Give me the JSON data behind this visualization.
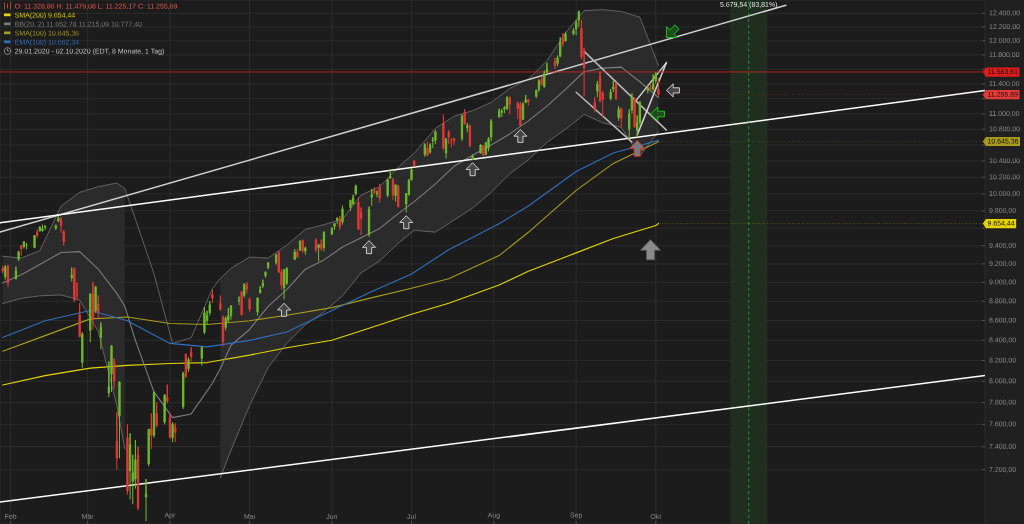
{
  "chart_data": {
    "type": "candlestick",
    "log": true,
    "grid": true,
    "legend": "top left",
    "xlim": [
      "2020-01-28",
      "2021-02-02"
    ],
    "xticks": [
      {
        "value": "2020-02-01",
        "label": "Feb"
      },
      {
        "value": "2020-03-01",
        "label": "Mär"
      },
      {
        "value": "2020-04-01",
        "label": "Apr"
      },
      {
        "value": "2020-05-01",
        "label": "Mai"
      },
      {
        "value": "2020-06-01",
        "label": "Jun"
      },
      {
        "value": "2020-07-01",
        "label": "Jul"
      },
      {
        "value": "2020-08-01",
        "label": "Aug"
      },
      {
        "value": "2020-09-01",
        "label": "Sep"
      },
      {
        "value": "2020-10-01",
        "label": "Okt"
      }
    ],
    "ylim": [
      6750,
      12600
    ],
    "yticks": [
      {
        "value": 7200,
        "label": "7.200,00"
      },
      {
        "value": 7400,
        "label": "7.400,00"
      },
      {
        "value": 7600,
        "label": "7.600,00"
      },
      {
        "value": 7800,
        "label": "7.800,00"
      },
      {
        "value": 8000,
        "label": "8.000,00"
      },
      {
        "value": 8200,
        "label": "8.200,00"
      },
      {
        "value": 8400,
        "label": "8.400,00"
      },
      {
        "value": 8600,
        "label": "8.600,00"
      },
      {
        "value": 8800,
        "label": "8.800,00"
      },
      {
        "value": 9000,
        "label": "9.000,00"
      },
      {
        "value": 9200,
        "label": "9.200,00"
      },
      {
        "value": 9400,
        "label": "9.400,00"
      },
      {
        "value": 9600,
        "label": null
      },
      {
        "value": 9800,
        "label": "9.800,00"
      },
      {
        "value": 10000,
        "label": "10.000,00"
      },
      {
        "value": 10200,
        "label": "10.200,00"
      },
      {
        "value": 10400,
        "label": "10.400,00"
      },
      {
        "value": 10600,
        "label": null
      },
      {
        "value": 10800,
        "label": "10.800,00"
      },
      {
        "value": 11000,
        "label": "11.000,00"
      },
      {
        "value": 11200,
        "label": null
      },
      {
        "value": 11400,
        "label": "11.400,00"
      },
      {
        "value": 11600,
        "label": null
      },
      {
        "value": 11800,
        "label": "11.800,00"
      },
      {
        "value": 12000,
        "label": "12.000,00"
      },
      {
        "value": 12200,
        "label": "12.200,00"
      },
      {
        "value": 12400,
        "label": "12.400,00"
      }
    ],
    "x": [
      "2020-01-29",
      "2020-01-30",
      "2020-01-31",
      "2020-02-03",
      "2020-02-04",
      "2020-02-05",
      "2020-02-06",
      "2020-02-07",
      "2020-02-10",
      "2020-02-11",
      "2020-02-12",
      "2020-02-13",
      "2020-02-14",
      "2020-02-18",
      "2020-02-19",
      "2020-02-20",
      "2020-02-21",
      "2020-02-24",
      "2020-02-25",
      "2020-02-26",
      "2020-02-27",
      "2020-02-28",
      "2020-03-02",
      "2020-03-03",
      "2020-03-04",
      "2020-03-05",
      "2020-03-06",
      "2020-03-09",
      "2020-03-10",
      "2020-03-11",
      "2020-03-12",
      "2020-03-13",
      "2020-03-16",
      "2020-03-17",
      "2020-03-18",
      "2020-03-19",
      "2020-03-20",
      "2020-03-23",
      "2020-03-24",
      "2020-03-25",
      "2020-03-26",
      "2020-03-27",
      "2020-03-30",
      "2020-03-31",
      "2020-04-01",
      "2020-04-02",
      "2020-04-03",
      "2020-04-06",
      "2020-04-07",
      "2020-04-08",
      "2020-04-09",
      "2020-04-13",
      "2020-04-14",
      "2020-04-15",
      "2020-04-16",
      "2020-04-17",
      "2020-04-20",
      "2020-04-21",
      "2020-04-22",
      "2020-04-23",
      "2020-04-24",
      "2020-04-27",
      "2020-04-28",
      "2020-04-29",
      "2020-04-30",
      "2020-05-01",
      "2020-05-04",
      "2020-05-05",
      "2020-05-06",
      "2020-05-07",
      "2020-05-08",
      "2020-05-11",
      "2020-05-12",
      "2020-05-13",
      "2020-05-14",
      "2020-05-15",
      "2020-05-18",
      "2020-05-19",
      "2020-05-20",
      "2020-05-21",
      "2020-05-22",
      "2020-05-26",
      "2020-05-27",
      "2020-05-28",
      "2020-05-29",
      "2020-06-01",
      "2020-06-02",
      "2020-06-03",
      "2020-06-04",
      "2020-06-05",
      "2020-06-08",
      "2020-06-09",
      "2020-06-10",
      "2020-06-11",
      "2020-06-12",
      "2020-06-15",
      "2020-06-16",
      "2020-06-17",
      "2020-06-18",
      "2020-06-19",
      "2020-06-22",
      "2020-06-23",
      "2020-06-24",
      "2020-06-25",
      "2020-06-26",
      "2020-06-29",
      "2020-06-30",
      "2020-07-01",
      "2020-07-02",
      "2020-07-06",
      "2020-07-07",
      "2020-07-08",
      "2020-07-09",
      "2020-07-10",
      "2020-07-13",
      "2020-07-14",
      "2020-07-15",
      "2020-07-16",
      "2020-07-17",
      "2020-07-20",
      "2020-07-21",
      "2020-07-22",
      "2020-07-23",
      "2020-07-24",
      "2020-07-27",
      "2020-07-28",
      "2020-07-29",
      "2020-07-30",
      "2020-07-31",
      "2020-08-03",
      "2020-08-04",
      "2020-08-05",
      "2020-08-06",
      "2020-08-07",
      "2020-08-10",
      "2020-08-11",
      "2020-08-12",
      "2020-08-13",
      "2020-08-14",
      "2020-08-17",
      "2020-08-18",
      "2020-08-19",
      "2020-08-20",
      "2020-08-21",
      "2020-08-24",
      "2020-08-25",
      "2020-08-26",
      "2020-08-27",
      "2020-08-28",
      "2020-08-31",
      "2020-09-01",
      "2020-09-02",
      "2020-09-03",
      "2020-09-04",
      "2020-09-08",
      "2020-09-09",
      "2020-09-10",
      "2020-09-11",
      "2020-09-14",
      "2020-09-15",
      "2020-09-16",
      "2020-09-17",
      "2020-09-18",
      "2020-09-21",
      "2020-09-22",
      "2020-09-23",
      "2020-09-24",
      "2020-09-25",
      "2020-09-28",
      "2020-09-29",
      "2020-09-30",
      "2020-10-01",
      "2020-10-02"
    ],
    "ohlc": [
      [
        9150,
        9180,
        9095,
        9120
      ],
      [
        9060,
        9185,
        9030,
        9170
      ],
      [
        9170,
        9190,
        8950,
        8991
      ],
      [
        9040,
        9170,
        9030,
        9126
      ],
      [
        9250,
        9345,
        9230,
        9334
      ],
      [
        9400,
        9410,
        9290,
        9368
      ],
      [
        9390,
        9450,
        9370,
        9445
      ],
      [
        9400,
        9430,
        9360,
        9402
      ],
      [
        9380,
        9520,
        9375,
        9517
      ],
      [
        9550,
        9580,
        9490,
        9517
      ],
      [
        9570,
        9620,
        9560,
        9613
      ],
      [
        9570,
        9640,
        9560,
        9595
      ],
      [
        9610,
        9630,
        9580,
        9623
      ],
      [
        9600,
        9640,
        9580,
        9629
      ],
      [
        9680,
        9736,
        9670,
        9718
      ],
      [
        9700,
        9725,
        9550,
        9627
      ],
      [
        9560,
        9580,
        9400,
        9447
      ],
      [
        9050,
        9160,
        9010,
        9079
      ],
      [
        9150,
        9160,
        8790,
        8812
      ],
      [
        8860,
        9000,
        8820,
        8854
      ],
      [
        8660,
        8780,
        8430,
        8436
      ],
      [
        8180,
        8480,
        8130,
        8462
      ],
      [
        8500,
        8880,
        8380,
        8877
      ],
      [
        8880,
        9000,
        8510,
        8612
      ],
      [
        8700,
        8960,
        8680,
        8952
      ],
      [
        8770,
        8860,
        8620,
        8680
      ],
      [
        8430,
        8580,
        8310,
        8530
      ],
      [
        7890,
        8190,
        7850,
        7948
      ],
      [
        8070,
        8350,
        7900,
        8344
      ],
      [
        8180,
        8220,
        7930,
        8000
      ],
      [
        7450,
        7710,
        7200,
        7300
      ],
      [
        7680,
        8000,
        7300,
        7995
      ],
      [
        7480,
        7600,
        6990,
        7020
      ],
      [
        7190,
        7520,
        6950,
        7420
      ],
      [
        7100,
        7330,
        6910,
        7174
      ],
      [
        7120,
        7460,
        7040,
        7288
      ],
      [
        7330,
        7400,
        6860,
        6879
      ],
      [
        6970,
        7120,
        6772,
        6994
      ],
      [
        7250,
        7560,
        7230,
        7553
      ],
      [
        7560,
        7700,
        7380,
        7502
      ],
      [
        7500,
        7900,
        7480,
        7897
      ],
      [
        7700,
        7800,
        7570,
        7588
      ],
      [
        7620,
        7880,
        7600,
        7870
      ],
      [
        7850,
        7970,
        7790,
        7813
      ],
      [
        7660,
        7700,
        7470,
        7487
      ],
      [
        7480,
        7620,
        7440,
        7601
      ],
      [
        7570,
        7610,
        7440,
        7528
      ],
      [
        7760,
        8090,
        7740,
        8073
      ],
      [
        8260,
        8270,
        8030,
        8045
      ],
      [
        8120,
        8230,
        8090,
        8210
      ],
      [
        8280,
        8330,
        8190,
        8238
      ],
      [
        8220,
        8340,
        8150,
        8329
      ],
      [
        8480,
        8740,
        8460,
        8680
      ],
      [
        8600,
        8700,
        8560,
        8650
      ],
      [
        8680,
        8800,
        8650,
        8765
      ],
      [
        8873,
        8920,
        8780,
        8832
      ],
      [
        8780,
        8860,
        8700,
        8714
      ],
      [
        8630,
        8650,
        8340,
        8387
      ],
      [
        8530,
        8640,
        8500,
        8623
      ],
      [
        8600,
        8730,
        8580,
        8650
      ],
      [
        8650,
        8760,
        8610,
        8750
      ],
      [
        8800,
        8850,
        8760,
        8809
      ],
      [
        8900,
        8910,
        8650,
        8660
      ],
      [
        8860,
        8990,
        8840,
        8980
      ],
      [
        8960,
        9000,
        8880,
        8930
      ],
      [
        8820,
        8840,
        8690,
        8718
      ],
      [
        8690,
        8840,
        8650,
        8835
      ],
      [
        8890,
        8960,
        8880,
        8920
      ],
      [
        8960,
        9030,
        8940,
        8990
      ],
      [
        9070,
        9120,
        9050,
        9110
      ],
      [
        9160,
        9220,
        9140,
        9213
      ],
      [
        9213,
        9310,
        9190,
        9296
      ],
      [
        9325,
        9340,
        9100,
        9110
      ],
      [
        9110,
        9140,
        8920,
        8970
      ],
      [
        8940,
        9140,
        8820,
        9140
      ],
      [
        8990,
        9160,
        8970,
        9152
      ],
      [
        9250,
        9360,
        9240,
        9331
      ],
      [
        9330,
        9360,
        9270,
        9272
      ],
      [
        9350,
        9460,
        9340,
        9453
      ],
      [
        9460,
        9470,
        9320,
        9345
      ],
      [
        9340,
        9390,
        9300,
        9375
      ],
      [
        9470,
        9480,
        9330,
        9353
      ],
      [
        9380,
        9420,
        9230,
        9412
      ],
      [
        9420,
        9470,
        9340,
        9369
      ],
      [
        9380,
        9560,
        9340,
        9555
      ],
      [
        9530,
        9610,
        9520,
        9598
      ],
      [
        9620,
        9660,
        9580,
        9653
      ],
      [
        9690,
        9720,
        9650,
        9718
      ],
      [
        9700,
        9740,
        9580,
        9615
      ],
      [
        9670,
        9860,
        9640,
        9824
      ],
      [
        9840,
        9930,
        9800,
        9925
      ],
      [
        9880,
        9990,
        9870,
        9953
      ],
      [
        10000,
        10110,
        9980,
        10094
      ],
      [
        9900,
        9960,
        9580,
        9588
      ],
      [
        9780,
        9840,
        9520,
        9711
      ],
      [
        9530,
        9850,
        9500,
        9817
      ],
      [
        9960,
        10060,
        9860,
        9994
      ],
      [
        10040,
        10080,
        9990,
        10014
      ],
      [
        10000,
        10040,
        9960,
        10008
      ],
      [
        10080,
        10120,
        9900,
        9947
      ],
      [
        9980,
        10180,
        9960,
        10172
      ],
      [
        10190,
        10300,
        10180,
        10210
      ],
      [
        10170,
        10190,
        9930,
        9985
      ],
      [
        9980,
        10110,
        9910,
        10109
      ],
      [
        10090,
        10110,
        9840,
        9849
      ],
      [
        9880,
        10010,
        9780,
        10004
      ],
      [
        9990,
        10180,
        9980,
        10157
      ],
      [
        10170,
        10310,
        10160,
        10294
      ],
      [
        10400,
        10410,
        10330,
        10341
      ],
      [
        10480,
        10620,
        10450,
        10605
      ],
      [
        10560,
        10640,
        10460,
        10470
      ],
      [
        10510,
        10620,
        10490,
        10600
      ],
      [
        10650,
        10700,
        10560,
        10660
      ],
      [
        10660,
        10790,
        10610,
        10770
      ],
      [
        10880,
        10990,
        10540,
        10560
      ],
      [
        10500,
        10690,
        10430,
        10672
      ],
      [
        10760,
        10790,
        10610,
        10700
      ],
      [
        10640,
        10690,
        10570,
        10636
      ],
      [
        10680,
        10690,
        10600,
        10652
      ],
      [
        10680,
        10990,
        10650,
        10970
      ],
      [
        11020,
        11060,
        10860,
        10870
      ],
      [
        10820,
        10880,
        10760,
        10846
      ],
      [
        10850,
        10860,
        10570,
        10590
      ],
      [
        10420,
        10480,
        10410,
        10461
      ],
      [
        10500,
        10610,
        10490,
        10600
      ],
      [
        10590,
        10600,
        10460,
        10470
      ],
      [
        10480,
        10640,
        10470,
        10630
      ],
      [
        10560,
        10700,
        10520,
        10680
      ],
      [
        10700,
        10930,
        10650,
        10905
      ],
      [
        10960,
        11070,
        10950,
        11035
      ],
      [
        11020,
        11060,
        10960,
        11040
      ],
      [
        11060,
        11100,
        11010,
        11085
      ],
      [
        11070,
        11230,
        11050,
        11220
      ],
      [
        11210,
        11230,
        10990,
        11128
      ],
      [
        11140,
        11160,
        10930,
        11067
      ],
      [
        11120,
        11160,
        10840,
        10853
      ],
      [
        10930,
        11150,
        10920,
        11135
      ],
      [
        11150,
        11250,
        11140,
        11187
      ],
      [
        11180,
        11200,
        11110,
        11157
      ],
      [
        11230,
        11320,
        11210,
        11313
      ],
      [
        11320,
        11460,
        11290,
        11440
      ],
      [
        11460,
        11500,
        11380,
        11390
      ],
      [
        11360,
        11580,
        11350,
        11540
      ],
      [
        11560,
        11690,
        11540,
        11600
      ],
      [
        11700,
        11760,
        11600,
        11650
      ],
      [
        11680,
        11790,
        11640,
        11760
      ],
      [
        11780,
        12050,
        11770,
        11980
      ],
      [
        12020,
        12110,
        11920,
        11960
      ],
      [
        12000,
        12130,
        11990,
        12100
      ],
      [
        12100,
        12180,
        12080,
        12150
      ],
      [
        12170,
        12300,
        12080,
        12260
      ],
      [
        12300,
        12440,
        12200,
        12420
      ],
      [
        12180,
        12300,
        11740,
        11771
      ],
      [
        11680,
        11900,
        11230,
        11622
      ],
      [
        11150,
        11220,
        11020,
        11060
      ],
      [
        11300,
        11440,
        11220,
        11398
      ],
      [
        11500,
        11570,
        11150,
        11170
      ],
      [
        11280,
        11300,
        10950,
        11190
      ],
      [
        11200,
        11330,
        11180,
        11290
      ],
      [
        11330,
        11440,
        11290,
        11360
      ],
      [
        11400,
        11420,
        11180,
        11200
      ],
      [
        10950,
        11100,
        10910,
        11060
      ],
      [
        11070,
        11080,
        10830,
        10938
      ],
      [
        10800,
        11060,
        10680,
        11000
      ],
      [
        11050,
        11270,
        11000,
        11220
      ],
      [
        11200,
        11220,
        10820,
        10833
      ],
      [
        10780,
        10980,
        10700,
        10890
      ],
      [
        10890,
        11170,
        10850,
        11150
      ],
      [
        11310,
        11390,
        11270,
        11340
      ],
      [
        11350,
        11410,
        11320,
        11330
      ],
      [
        11330,
        11530,
        11300,
        11400
      ],
      [
        11440,
        11560,
        11400,
        11538
      ],
      [
        11328.86,
        11479.08,
        11225.17,
        11255.69
      ]
    ],
    "series": [
      {
        "type": "line",
        "name": "SMA(200) 9.654,44",
        "color": "#e6d400",
        "x": [
          "2020-01-29",
          "2020-02-14",
          "2020-03-02",
          "2020-03-16",
          "2020-04-01",
          "2020-04-15",
          "2020-05-01",
          "2020-05-15",
          "2020-06-01",
          "2020-06-15",
          "2020-07-01",
          "2020-07-15",
          "2020-08-03",
          "2020-08-14",
          "2020-09-01",
          "2020-09-15",
          "2020-10-01",
          "2020-10-02"
        ],
        "values": [
          7965,
          8054,
          8126,
          8153,
          8171,
          8180,
          8253,
          8326,
          8400,
          8522,
          8665,
          8780,
          8971,
          9120,
          9322,
          9484,
          9630,
          9654.44
        ]
      },
      {
        "type": "line",
        "name": "BB(20, 2) 11.652,78 11.215,09 10.777,40",
        "color": "#7c7c7c",
        "x": [
          "2020-01-29",
          "2020-02-05",
          "2020-02-12",
          "2020-02-20",
          "2020-02-27",
          "2020-03-05",
          "2020-03-12",
          "2020-03-15",
          "2020-03-19",
          "2020-03-26",
          "2020-04-02",
          "2020-04-09",
          "2020-04-17",
          "2020-04-20",
          "2020-04-24",
          "2020-05-01",
          "2020-05-08",
          "2020-05-15",
          "2020-05-22",
          "2020-05-29",
          "2020-06-05",
          "2020-06-12",
          "2020-06-19",
          "2020-06-26",
          "2020-07-02",
          "2020-07-10",
          "2020-07-17",
          "2020-07-24",
          "2020-07-31",
          "2020-08-07",
          "2020-08-14",
          "2020-08-21",
          "2020-08-28",
          "2020-09-04",
          "2020-09-11",
          "2020-09-18",
          "2020-09-25",
          "2020-10-02"
        ],
        "values": [
          8992,
          9082,
          9193,
          9326,
          9336,
          9142,
          8883,
          8747,
          8400,
          7900,
          7662,
          7696,
          7982,
          8123,
          8351,
          8509,
          8747,
          8922,
          9142,
          9244,
          9387,
          9492,
          9597,
          9768,
          9909,
          10120,
          10334,
          10472,
          10600,
          10741,
          10909,
          11103,
          11326,
          11566,
          11617,
          11630,
          11430,
          11215.09
        ],
        "lower": [
          8776,
          8830,
          8857,
          8866,
          8812,
          8490,
          7773,
          7380,
          null,
          null,
          null,
          null,
          null,
          7131,
          7371,
          7773,
          8132,
          8369,
          8556,
          8689,
          8857,
          9102,
          9233,
          9429,
          9576,
          9555,
          9693,
          9833,
          10019,
          10243,
          10414,
          10634,
          10801,
          10993,
          10885,
          10825,
          10460,
          10777.4
        ],
        "upper": [
          9285,
          9264,
          9346,
          9855,
          10019,
          10086,
          10131,
          10064,
          null,
          null,
          null,
          null,
          null,
          9042,
          9152,
          9275,
          9264,
          9408,
          9587,
          9640,
          9704,
          9986,
          10086,
          10323,
          10496,
          10813,
          10969,
          11042,
          11152,
          11339,
          11465,
          11720,
          12115,
          12440,
          12454,
          12426,
          12344,
          11652.78
        ]
      },
      {
        "type": "line",
        "color": "#7c7c7c",
        "x": [
          "2020-01-29",
          "2020-02-05",
          "2020-02-12",
          "2020-02-20",
          "2020-02-27",
          "2020-03-05",
          "2020-03-12",
          "2020-03-15",
          "2020-03-19",
          "2020-03-26",
          "2020-04-02",
          "2020-04-09",
          "2020-04-17",
          "2020-04-20",
          "2020-04-24",
          "2020-05-01",
          "2020-05-08",
          "2020-05-15",
          "2020-05-22",
          "2020-05-29",
          "2020-06-05",
          "2020-06-12",
          "2020-06-19",
          "2020-06-26",
          "2020-07-02",
          "2020-07-10",
          "2020-07-17",
          "2020-07-24",
          "2020-07-31",
          "2020-08-07",
          "2020-08-14",
          "2020-08-21",
          "2020-08-28",
          "2020-09-04",
          "2020-09-11",
          "2020-09-18",
          "2020-09-25",
          "2020-10-02"
        ],
        "values": [
          9285,
          9264,
          9346,
          9855,
          10019,
          10086,
          10131,
          10064,
          9704,
          9092,
          8369,
          8425,
          8932,
          9042,
          9152,
          9275,
          9264,
          9408,
          9587,
          9640,
          9704,
          9986,
          10086,
          10323,
          10496,
          10813,
          10969,
          11042,
          11152,
          11339,
          11465,
          11720,
          12115,
          12440,
          12454,
          12426,
          12344,
          11652.78
        ]
      },
      {
        "type": "line",
        "color": "#7c7c7c",
        "x": [
          "2020-01-29",
          "2020-02-05",
          "2020-02-12",
          "2020-02-20",
          "2020-02-27",
          "2020-03-05",
          "2020-03-12",
          "2020-03-15",
          "2020-03-19",
          "2020-03-26",
          "2020-04-02",
          "2020-04-09",
          "2020-04-17",
          "2020-04-20",
          "2020-04-24",
          "2020-05-01",
          "2020-05-08",
          "2020-05-15",
          "2020-05-22",
          "2020-05-29",
          "2020-06-05",
          "2020-06-12",
          "2020-06-19",
          "2020-06-26",
          "2020-07-02",
          "2020-07-10",
          "2020-07-17",
          "2020-07-24",
          "2020-07-31",
          "2020-08-07",
          "2020-08-14",
          "2020-08-21",
          "2020-08-28",
          "2020-09-04",
          "2020-09-11",
          "2020-09-18",
          "2020-09-25",
          "2020-10-02"
        ],
        "values": [
          8776,
          8830,
          8857,
          8866,
          8812,
          8490,
          7773,
          7380,
          null,
          null,
          null,
          null,
          null,
          7131,
          7371,
          7773,
          8132,
          8369,
          8556,
          8689,
          8857,
          9102,
          9233,
          9429,
          9576,
          9555,
          9693,
          9833,
          10019,
          10243,
          10414,
          10634,
          10801,
          10993,
          10885,
          10825,
          10460,
          10777.4
        ]
      },
      {
        "type": "line",
        "name": "SMA(100) 10.645,36",
        "color": "#a89b1c",
        "x": [
          "2020-01-29",
          "2020-02-14",
          "2020-03-02",
          "2020-03-16",
          "2020-04-01",
          "2020-04-15",
          "2020-05-01",
          "2020-05-15",
          "2020-06-01",
          "2020-06-15",
          "2020-07-01",
          "2020-07-15",
          "2020-08-03",
          "2020-08-14",
          "2020-09-01",
          "2020-09-15",
          "2020-10-01",
          "2020-10-02"
        ],
        "values": [
          8292,
          8447,
          8617,
          8636,
          8570,
          8560,
          8598,
          8655,
          8733,
          8830,
          8938,
          9038,
          9292,
          9553,
          10042,
          10370,
          10625,
          10645.36
        ]
      },
      {
        "type": "line",
        "name": "EMA(100) 10.662,34",
        "color": "#2f6fbf",
        "x": [
          "2020-01-29",
          "2020-02-14",
          "2020-03-02",
          "2020-03-16",
          "2020-04-01",
          "2020-04-15",
          "2020-05-01",
          "2020-05-15",
          "2020-06-01",
          "2020-06-15",
          "2020-07-01",
          "2020-07-15",
          "2020-08-03",
          "2020-08-14",
          "2020-09-01",
          "2020-09-15",
          "2020-10-01",
          "2020-10-02"
        ],
        "values": [
          8428,
          8598,
          8704,
          8598,
          8369,
          8334,
          8399,
          8483,
          8704,
          8889,
          9091,
          9357,
          9652,
          9857,
          10270,
          10500,
          10649,
          10662.34
        ]
      },
      {
        "type": "line",
        "color": "#d0d0d0",
        "x": [
          "2020-01-28",
          "2020-11-19"
        ],
        "values": [
          9555,
          12520
        ]
      },
      {
        "type": "line",
        "color": "#ffffff",
        "x": [
          "2020-01-28",
          "2021-02-02"
        ],
        "values": [
          9661,
          11311
        ]
      },
      {
        "type": "line",
        "color": "#ffffff",
        "x": [
          "2020-01-28",
          "2021-02-02"
        ],
        "values": [
          6928,
          8054
        ]
      },
      {
        "type": "line",
        "color": "#b8b8b8",
        "x": [
          "2020-09-04",
          "2020-10-05"
        ],
        "values": [
          11850,
          10790
        ]
      },
      {
        "type": "line",
        "color": "#b8b8b8",
        "x": [
          "2020-09-01",
          "2020-09-22"
        ],
        "values": [
          11288,
          10637
        ]
      },
      {
        "type": "line",
        "color": "#d0d0d0",
        "x": [
          "2020-09-23",
          "2020-10-05"
        ],
        "values": [
          11152,
          11693
        ]
      },
      {
        "type": "line",
        "color": "#d0d0d0",
        "x": [
          "2020-09-24",
          "2020-10-05"
        ],
        "values": [
          10729,
          11693
        ]
      }
    ],
    "ref_lines": [
      {
        "axis": "y",
        "value": 11563.61,
        "label": "11.563,61",
        "color": "#e01b1b"
      },
      {
        "axis": "x",
        "value": "2020-11-05",
        "label": "5.679,54 (83,81%)",
        "color": "#27b827",
        "line_style": "dashed"
      }
    ],
    "bands": [
      {
        "axis": "x",
        "from": "2020-10-29",
        "to": "2020-11-12",
        "color": "#1f2e1f"
      }
    ],
    "annotations": [
      "O: 11.328,86 H: 11.479,08 L: 11.225,17 C: 11.255,69",
      "29.01.2020 - 02.10.2020 (EDT, 8 Monate, 1 Tag)",
      {
        "text": "11.255,69",
        "x": "2020-10-02",
        "y": 11255.69
      },
      {
        "text": "10.645,36",
        "x": "2020-10-02",
        "y": 10645.36
      },
      {
        "text": "9.654,44",
        "x": "2020-10-02",
        "y": 9654.44
      }
    ]
  }
}
